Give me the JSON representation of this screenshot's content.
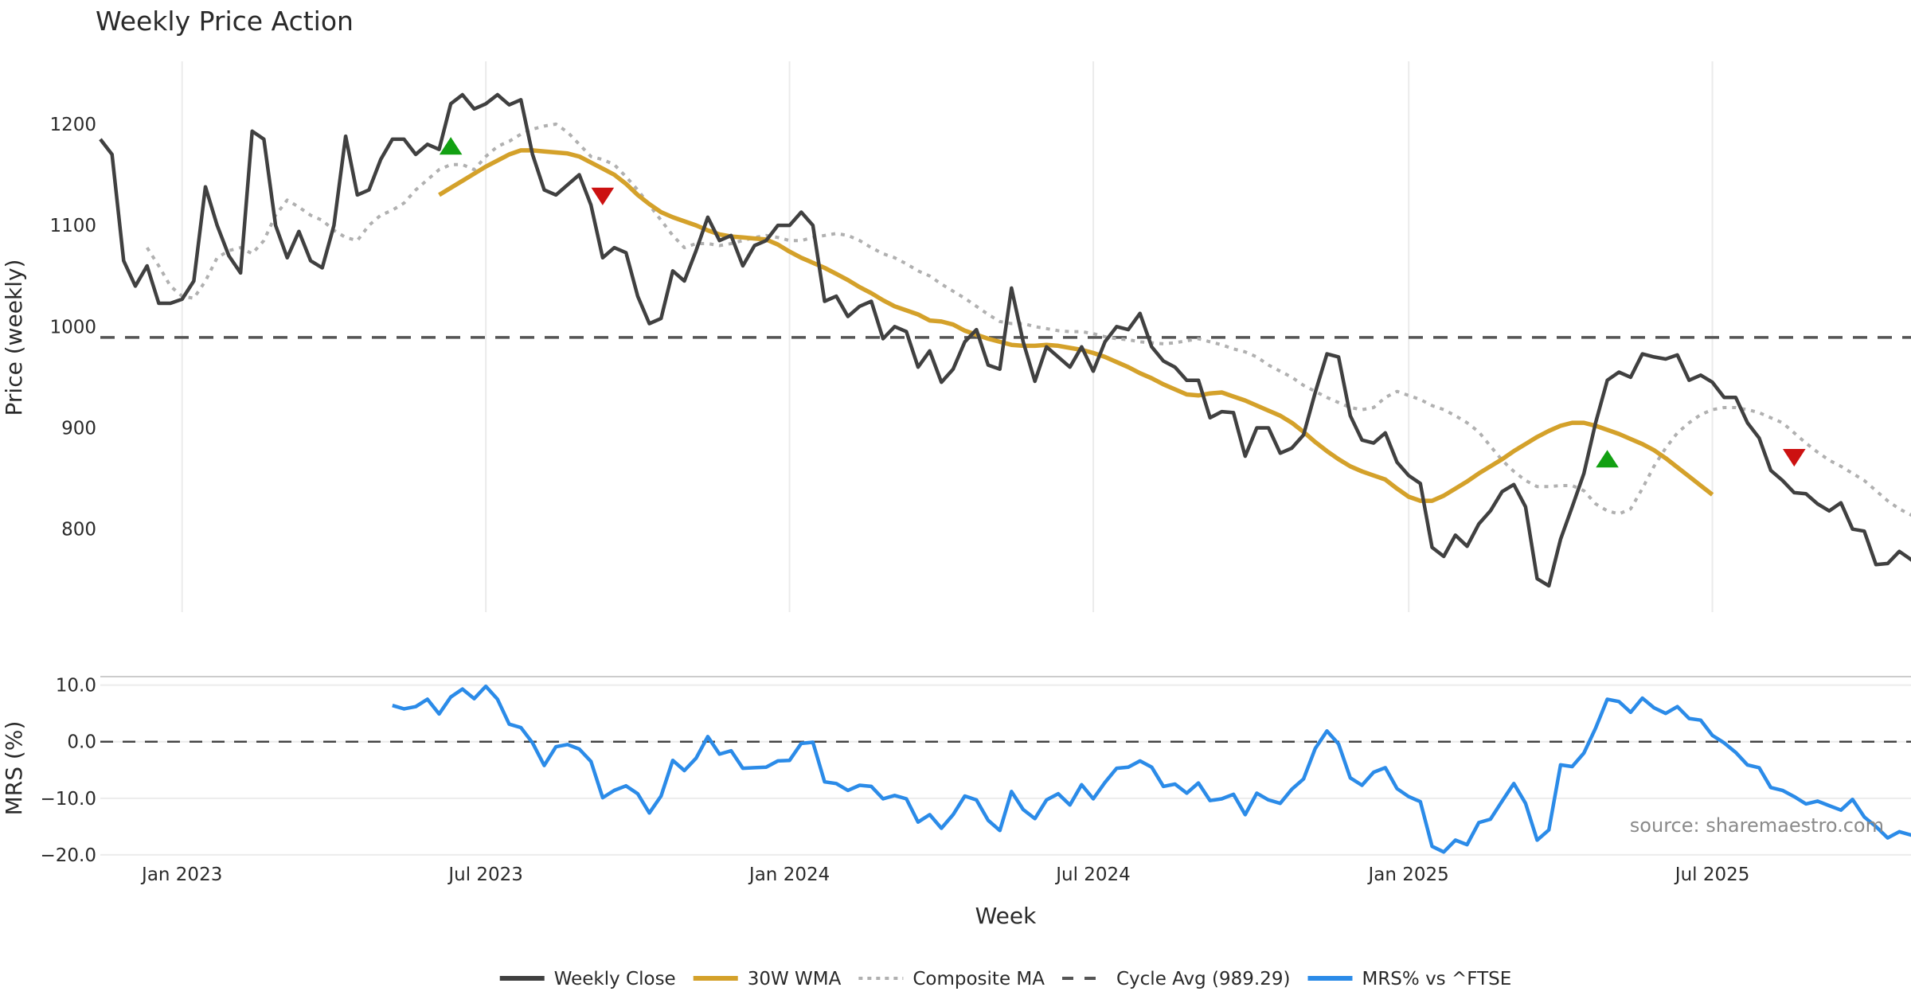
{
  "chart_data": [
    {
      "type": "line",
      "title": "Weekly Price Action",
      "xlabel": "Week",
      "ylabel": "Price (weekly)",
      "ylim": [
        718,
        1262
      ],
      "yticks": [
        800,
        900,
        1000,
        1100,
        1200
      ],
      "xticks": [
        {
          "date": "2023-01-02",
          "label": "Jan 2023"
        },
        {
          "date": "2023-07-03",
          "label": "Jul 2023"
        },
        {
          "date": "2024-01-01",
          "label": "Jan 2024"
        },
        {
          "date": "2024-07-01",
          "label": "Jul 2024"
        },
        {
          "date": "2025-01-06",
          "label": "Jan 2025"
        },
        {
          "date": "2025-07-07",
          "label": "Jul 2025"
        }
      ],
      "x_start_date": "2022-11-14",
      "x_end_week_index": 155,
      "grid": "vertical-only",
      "series": [
        {
          "name": "Weekly Close",
          "color": "#404040",
          "style": "solid",
          "start_week_index": 0,
          "values": [
            1185,
            1170,
            1065,
            1040,
            1060,
            1023,
            1023,
            1027,
            1045,
            1138,
            1100,
            1070,
            1053,
            1193,
            1185,
            1100,
            1068,
            1094,
            1065,
            1058,
            1100,
            1188,
            1130,
            1135,
            1165,
            1185,
            1185,
            1170,
            1180,
            1175,
            1220,
            1229,
            1215,
            1220,
            1229,
            1219,
            1224,
            1170,
            1135,
            1130,
            1140,
            1150,
            1120,
            1068,
            1078,
            1073,
            1030,
            1003,
            1008,
            1055,
            1045,
            1075,
            1108,
            1085,
            1090,
            1060,
            1080,
            1085,
            1100,
            1100,
            1113,
            1100,
            1025,
            1030,
            1010,
            1020,
            1025,
            988,
            1000,
            995,
            960,
            976,
            945,
            958,
            985,
            997,
            962,
            958,
            1038,
            985,
            946,
            980,
            970,
            960,
            980,
            956,
            985,
            1000,
            997,
            1013,
            980,
            966,
            960,
            947,
            947,
            910,
            916,
            915,
            872,
            900,
            900,
            875,
            880,
            893,
            935,
            973,
            970,
            912,
            888,
            885,
            895,
            866,
            853,
            845,
            782,
            773,
            794,
            783,
            805,
            818,
            837,
            844,
            822,
            751,
            744,
            790,
            822,
            855,
            905,
            947,
            955,
            950,
            973,
            970,
            968,
            972,
            947,
            952,
            945,
            930,
            930,
            905,
            890,
            858,
            848,
            836,
            835,
            825,
            818,
            826,
            800,
            798,
            765,
            766,
            778,
            770,
            760
          ]
        },
        {
          "name": "30W WMA",
          "color": "#d4a12a",
          "style": "solid",
          "start_week_index": 29,
          "values": [
            1130,
            1137,
            1144,
            1151,
            1158,
            1164,
            1170,
            1174,
            1174,
            1173,
            1172,
            1171,
            1168,
            1162,
            1156,
            1150,
            1141,
            1130,
            1121,
            1113,
            1108,
            1104,
            1100,
            1095,
            1091,
            1089,
            1088,
            1087,
            1086,
            1081,
            1074,
            1068,
            1063,
            1058,
            1052,
            1046,
            1039,
            1033,
            1026,
            1020,
            1016,
            1012,
            1006,
            1005,
            1002,
            996,
            992,
            988,
            985,
            982,
            981,
            981,
            982,
            981,
            979,
            977,
            974,
            970,
            965,
            960,
            954,
            949,
            943,
            938,
            933,
            932,
            934,
            935,
            931,
            927,
            922,
            917,
            912,
            905,
            896,
            886,
            877,
            869,
            862,
            857,
            853,
            849,
            840,
            832,
            828,
            828,
            833,
            840,
            847,
            855,
            862,
            869,
            877,
            884,
            891,
            897,
            902,
            905,
            905,
            902,
            898,
            894,
            889,
            884,
            878,
            870,
            861,
            852,
            843,
            834
          ]
        },
        {
          "name": "Composite MA",
          "color": "#b0b0b0",
          "style": "dotted",
          "start_week_index": 4,
          "values": [
            1078,
            1060,
            1040,
            1030,
            1028,
            1045,
            1068,
            1075,
            1078,
            1072,
            1085,
            1110,
            1125,
            1118,
            1110,
            1105,
            1095,
            1088,
            1085,
            1100,
            1110,
            1115,
            1122,
            1135,
            1145,
            1155,
            1160,
            1160,
            1155,
            1168,
            1178,
            1183,
            1190,
            1195,
            1198,
            1200,
            1192,
            1180,
            1168,
            1165,
            1160,
            1148,
            1135,
            1120,
            1105,
            1090,
            1078,
            1082,
            1082,
            1080,
            1082,
            1085,
            1088,
            1090,
            1088,
            1085,
            1085,
            1088,
            1090,
            1092,
            1090,
            1085,
            1078,
            1072,
            1068,
            1062,
            1055,
            1050,
            1042,
            1035,
            1028,
            1020,
            1012,
            1005,
            1003,
            1003,
            1000,
            998,
            996,
            995,
            995,
            993,
            990,
            988,
            987,
            985,
            984,
            983,
            984,
            986,
            988,
            985,
            982,
            978,
            975,
            970,
            962,
            956,
            950,
            942,
            936,
            930,
            925,
            920,
            918,
            920,
            930,
            936,
            932,
            928,
            922,
            918,
            912,
            905,
            896,
            882,
            868,
            857,
            848,
            842,
            842,
            843,
            843,
            838,
            825,
            818,
            815,
            820,
            840,
            862,
            880,
            895,
            905,
            913,
            918,
            920,
            920,
            918,
            915,
            910,
            905,
            895,
            885,
            876,
            868,
            862,
            855,
            848,
            838,
            828,
            820,
            814,
            808
          ]
        },
        {
          "name": "Cycle Avg (989.29)",
          "color": "#555555",
          "style": "dashed",
          "constant": 989.29
        }
      ],
      "markers": [
        {
          "type": "buy",
          "shape": "triangle-up",
          "color": "#12a012",
          "week_index": 30,
          "value": 1177
        },
        {
          "type": "sell",
          "shape": "triangle-down",
          "color": "#cc1111",
          "week_index": 43,
          "value": 1130
        },
        {
          "type": "buy",
          "shape": "triangle-up",
          "color": "#12a012",
          "week_index": 129,
          "value": 868
        },
        {
          "type": "sell",
          "shape": "triangle-down",
          "color": "#cc1111",
          "week_index": 145,
          "value": 872
        }
      ]
    },
    {
      "type": "line",
      "ylabel": "MRS (%)",
      "xlabel": "Week",
      "ylim": [
        -21,
        11.5
      ],
      "yticks": [
        10.0,
        0.0,
        -10.0,
        -20.0
      ],
      "ytick_labels": [
        "10.0",
        "0.0",
        "−10.0",
        "−20.0"
      ],
      "zero_line": {
        "value": 0,
        "style": "dashed"
      },
      "series": [
        {
          "name": "MRS% vs ^FTSE",
          "color": "#2b8be8",
          "style": "solid",
          "start_week_index": 25,
          "values": [
            6.4,
            5.8,
            6.2,
            7.5,
            4.9,
            7.9,
            9.3,
            7.6,
            9.8,
            7.5,
            3.1,
            2.5,
            -0.2,
            -4.2,
            -0.9,
            -0.5,
            -1.3,
            -3.5,
            -9.9,
            -8.6,
            -7.8,
            -9.2,
            -12.6,
            -9.6,
            -3.3,
            -5.1,
            -2.9,
            0.9,
            -2.2,
            -1.6,
            -4.7,
            -4.6,
            -4.5,
            -3.4,
            -3.3,
            -0.3,
            -0.1,
            -7.1,
            -7.4,
            -8.6,
            -7.7,
            -7.9,
            -10.1,
            -9.5,
            -10.1,
            -14.2,
            -12.9,
            -15.3,
            -12.9,
            -9.6,
            -10.3,
            -13.9,
            -15.7,
            -8.8,
            -12.0,
            -13.6,
            -10.3,
            -9.2,
            -11.2,
            -7.6,
            -10.1,
            -7.2,
            -4.7,
            -4.5,
            -3.4,
            -4.5,
            -7.9,
            -7.5,
            -9.1,
            -7.3,
            -10.4,
            -10.1,
            -9.3,
            -12.9,
            -9.1,
            -10.3,
            -10.9,
            -8.4,
            -6.6,
            -1.2,
            1.9,
            -0.4,
            -6.4,
            -7.7,
            -5.4,
            -4.6,
            -8.3,
            -9.7,
            -10.6,
            -18.5,
            -19.5,
            -17.4,
            -18.2,
            -14.3,
            -13.7,
            -10.5,
            -7.4,
            -10.9,
            -17.4,
            -15.6,
            -4.1,
            -4.4,
            -2.0,
            2.4,
            7.5,
            7.1,
            5.2,
            7.7,
            6.0,
            5.0,
            6.2,
            4.1,
            3.8,
            1.1,
            -0.2,
            -1.9,
            -4.1,
            -4.6,
            -8.1,
            -8.6,
            -9.7,
            -11.0,
            -10.5,
            -11.3,
            -12.1,
            -10.2,
            -13.3,
            -15.0,
            -17.0,
            -15.9,
            -16.5,
            -17.1,
            -17.2
          ]
        }
      ],
      "annotation": "source: sharemaestro.com"
    }
  ],
  "legend": {
    "position": "bottom-center",
    "items": [
      {
        "label": "Weekly Close",
        "color": "#404040",
        "style": "solid"
      },
      {
        "label": "30W WMA",
        "color": "#d4a12a",
        "style": "solid"
      },
      {
        "label": "Composite MA",
        "color": "#b0b0b0",
        "style": "dotted"
      },
      {
        "label": "Cycle Avg (989.29)",
        "color": "#555555",
        "style": "dashed"
      },
      {
        "label": "MRS% vs ^FTSE",
        "color": "#2b8be8",
        "style": "solid"
      }
    ]
  }
}
